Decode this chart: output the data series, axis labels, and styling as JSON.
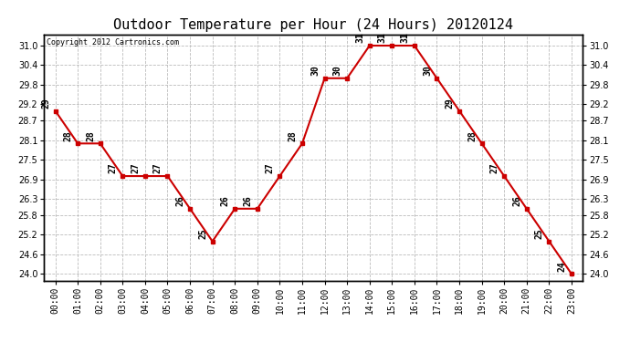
{
  "title": "Outdoor Temperature per Hour (24 Hours) 20120124",
  "copyright": "Copyright 2012 Cartronics.com",
  "hours": [
    "00:00",
    "01:00",
    "02:00",
    "03:00",
    "04:00",
    "05:00",
    "06:00",
    "07:00",
    "08:00",
    "09:00",
    "10:00",
    "11:00",
    "12:00",
    "13:00",
    "14:00",
    "15:00",
    "16:00",
    "17:00",
    "18:00",
    "19:00",
    "20:00",
    "21:00",
    "22:00",
    "23:00"
  ],
  "values": [
    29,
    28,
    28,
    27,
    27,
    27,
    26,
    25,
    26,
    26,
    27,
    28,
    30,
    30,
    31,
    31,
    31,
    30,
    29,
    28,
    27,
    26,
    25,
    24
  ],
  "line_color": "#cc0000",
  "marker_color": "#cc0000",
  "bg_color": "#ffffff",
  "plot_bg_color": "#ffffff",
  "grid_color": "#bbbbbb",
  "title_fontsize": 11,
  "label_fontsize": 7,
  "annotation_fontsize": 7,
  "ylim_min": 23.8,
  "ylim_max": 31.35,
  "yticks": [
    24.0,
    24.6,
    25.2,
    25.8,
    26.3,
    26.9,
    27.5,
    28.1,
    28.7,
    29.2,
    29.8,
    30.4,
    31.0
  ]
}
